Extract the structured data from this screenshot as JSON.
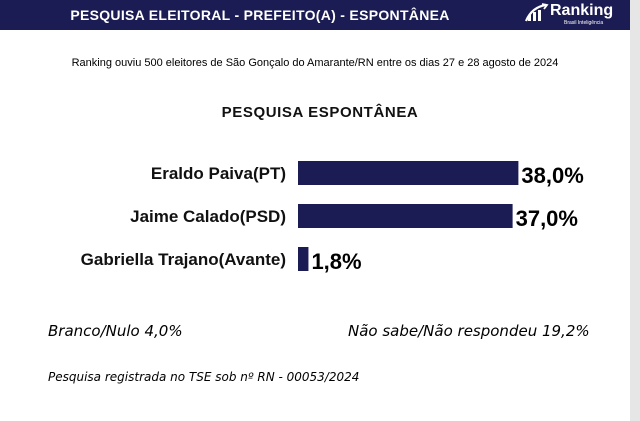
{
  "header": {
    "title": "PESQUISA ELEITORAL - PREFEITO(A) - ESPONTÂNEA",
    "logo_name": "Ranking",
    "logo_tagline": "Brasil Inteligência",
    "logo_icon": "bar-chart-logo-icon"
  },
  "subtitle": "Ranking ouviu 500 eleitores de São Gonçalo do Amarante/RN entre os dias 27 e 28 agosto de 2024",
  "colors": {
    "header_bg": "#1c1c54",
    "bar": "#1c1c54",
    "text": "#000000"
  },
  "chart_data": {
    "type": "bar",
    "orientation": "horizontal",
    "title": "PESQUISA ESPONTÂNEA",
    "categories": [
      "Eraldo Paiva(PT)",
      "Jaime Calado(PSD)",
      "Gabriella Trajano(Avante)"
    ],
    "values": [
      38.0,
      37.0,
      1.8
    ],
    "data_labels": [
      "38,0%",
      "37,0%",
      "1,8%"
    ],
    "unit": "%",
    "grid": false,
    "legend": "none"
  },
  "footnotes": {
    "branco_nulo": "Branco/Nulo 4,0%",
    "nao_sabe": "Não sabe/Não respondeu 19,2%",
    "registro": "Pesquisa registrada no TSE sob nº RN - 00053/2024"
  }
}
